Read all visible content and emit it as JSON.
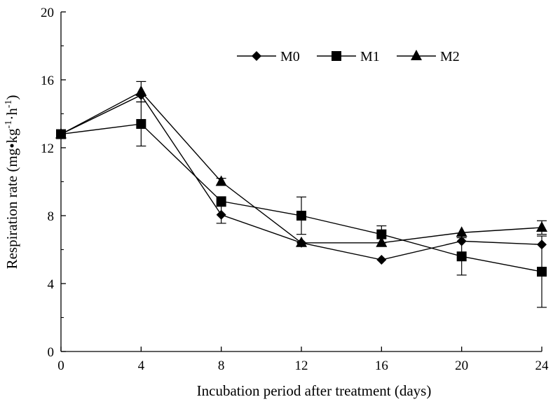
{
  "chart_data": {
    "type": "line",
    "title": "",
    "xlabel": "Incubation period after treatment (days)",
    "ylabel": {
      "main": "Respiration rate (mg•kg",
      "sup1": "-1",
      "mid": "·h",
      "sup2": "-1",
      "end": ")"
    },
    "x": [
      0,
      4,
      8,
      12,
      16,
      20,
      24
    ],
    "xlim": [
      0,
      24
    ],
    "ylim": [
      0,
      20
    ],
    "xticks": [
      0,
      4,
      8,
      12,
      16,
      20,
      24
    ],
    "yticks": [
      0,
      4,
      8,
      12,
      16,
      20
    ],
    "grid": false,
    "legend_position": "top-right",
    "series": [
      {
        "name": "M0",
        "marker": "diamond",
        "values": [
          12.8,
          15.1,
          8.05,
          6.4,
          5.4,
          6.5,
          6.3
        ],
        "errors": [
          0,
          0,
          0.5,
          0,
          0,
          0,
          0
        ]
      },
      {
        "name": "M1",
        "marker": "square",
        "values": [
          12.8,
          13.4,
          8.85,
          8.0,
          6.9,
          5.6,
          4.7
        ],
        "errors": [
          0,
          1.3,
          0,
          1.1,
          0.5,
          1.1,
          2.1
        ]
      },
      {
        "name": "M2",
        "marker": "triangle",
        "values": [
          12.8,
          15.3,
          10.0,
          6.4,
          6.4,
          7.0,
          7.3
        ],
        "errors": [
          0,
          0.6,
          0.2,
          0,
          0,
          0,
          0.4
        ]
      }
    ]
  }
}
